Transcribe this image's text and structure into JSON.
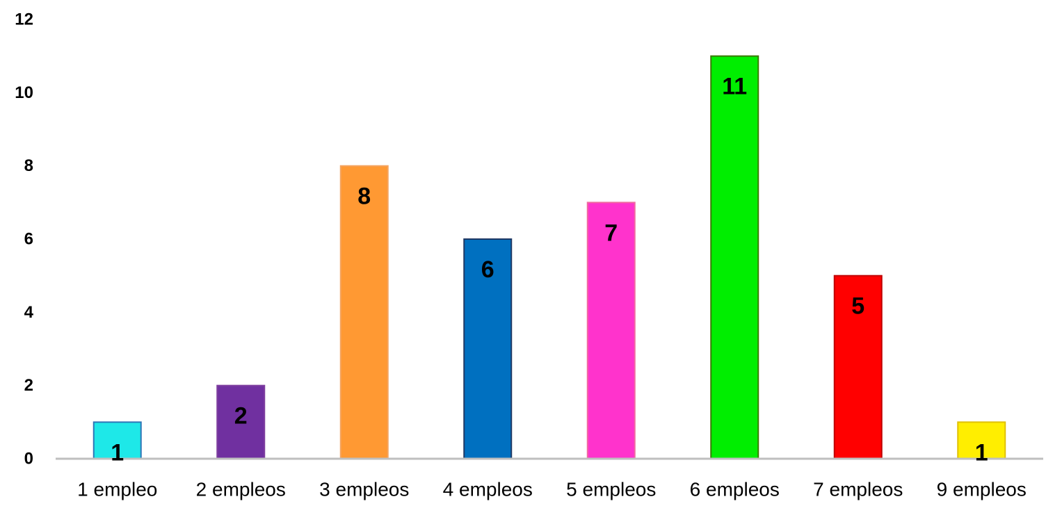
{
  "chart_data": {
    "type": "bar",
    "categories": [
      "1 empleo",
      "2 empleos",
      "3 empleos",
      "4 empleos",
      "5 empleos",
      "6 empleos",
      "7 empleos",
      "9 empleos"
    ],
    "values": [
      1,
      2,
      8,
      6,
      7,
      11,
      5,
      1
    ],
    "data_labels": [
      "1",
      "2",
      "8",
      "6",
      "7",
      "11",
      "5",
      "1"
    ],
    "bar_colors": [
      "#1ee8e8",
      "#7030a0",
      "#ff9933",
      "#0070c0",
      "#ff33cc",
      "#00ee00",
      "#ff0000",
      "#ffee00"
    ],
    "bar_edge_colors": [
      "#2e75b6",
      "#7f3f9f",
      "#f4a460",
      "#1f3864",
      "#f06aa0",
      "#3a7a00",
      "#c00000",
      "#e0c000"
    ],
    "ylim": [
      0,
      12
    ],
    "yticks": [
      0,
      2,
      4,
      6,
      8,
      10,
      12
    ],
    "ytick_labels": [
      "0",
      "2",
      "4",
      "6",
      "8",
      "10",
      "12"
    ],
    "title": "",
    "xlabel": "",
    "ylabel": "",
    "grid": false,
    "legend": "none",
    "axis_color": "#bfbfbf"
  }
}
